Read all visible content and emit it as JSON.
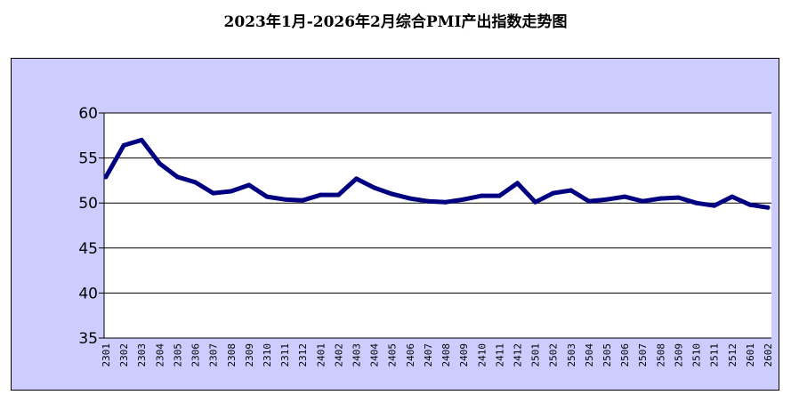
{
  "chart_data": {
    "type": "line",
    "title": "2023年1月-2026年2月综合PMI产出指数走势图",
    "xlabel": "",
    "ylabel": "",
    "ylim": [
      35,
      60
    ],
    "yticks": [
      35,
      40,
      45,
      50,
      55,
      60
    ],
    "grid": true,
    "legend": "none",
    "categories": [
      "2301",
      "2302",
      "2303",
      "2304",
      "2305",
      "2306",
      "2307",
      "2308",
      "2309",
      "2310",
      "2311",
      "2312",
      "2401",
      "2402",
      "2403",
      "2404",
      "2405",
      "2406",
      "2407",
      "2408",
      "2409",
      "2410",
      "2411",
      "2412",
      "2501",
      "2502",
      "2503",
      "2504",
      "2505",
      "2506",
      "2507",
      "2508",
      "2509",
      "2510",
      "2511",
      "2512",
      "2601",
      "2602"
    ],
    "series": [
      {
        "values": [
          52.9,
          56.4,
          57.0,
          54.4,
          52.9,
          52.3,
          51.1,
          51.3,
          52.0,
          50.7,
          50.4,
          50.3,
          50.9,
          50.9,
          52.7,
          51.7,
          51.0,
          50.5,
          50.2,
          50.1,
          50.4,
          50.8,
          50.8,
          52.2,
          50.1,
          51.1,
          51.4,
          50.2,
          50.4,
          50.7,
          50.2,
          50.5,
          50.6,
          50.0,
          49.7,
          50.7,
          49.8,
          49.5
        ]
      }
    ],
    "colors": {
      "plot_frame_bg": "#ccccff",
      "plot_area_bg": "#ffffff",
      "line": "#000080",
      "grid": "#000000",
      "text": "#000000"
    }
  }
}
